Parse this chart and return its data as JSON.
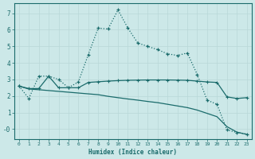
{
  "xlabel": "Humidex (Indice chaleur)",
  "bg_color": "#cce8e8",
  "grid_color": "#aacccc",
  "line_color": "#1a6b6b",
  "xlim": [
    -0.5,
    23.5
  ],
  "ylim": [
    -0.6,
    7.6
  ],
  "yticks": [
    0,
    1,
    2,
    3,
    4,
    5,
    6,
    7
  ],
  "ytick_labels": [
    "-0",
    "1",
    "2",
    "3",
    "4",
    "5",
    "6",
    "7"
  ],
  "xticks": [
    0,
    1,
    2,
    3,
    4,
    5,
    6,
    7,
    8,
    9,
    10,
    11,
    12,
    13,
    14,
    15,
    16,
    17,
    18,
    19,
    20,
    21,
    22,
    23
  ],
  "curve1_x": [
    0,
    1,
    2,
    3,
    4,
    5,
    6,
    7,
    8,
    9,
    10,
    11,
    12,
    13,
    14,
    15,
    16,
    17,
    18,
    19,
    20,
    21,
    22,
    23
  ],
  "curve1_y": [
    2.6,
    1.85,
    3.2,
    3.2,
    3.0,
    2.5,
    2.85,
    4.5,
    6.1,
    6.05,
    7.2,
    6.1,
    5.2,
    5.0,
    4.8,
    4.55,
    4.45,
    4.6,
    3.3,
    1.75,
    1.5,
    -0.05,
    -0.2,
    -0.3
  ],
  "curve2_x": [
    0,
    1,
    2,
    3,
    4,
    5,
    6,
    7,
    8,
    9,
    10,
    11,
    12,
    13,
    14,
    15,
    16,
    17,
    18,
    19,
    20,
    21,
    22,
    23
  ],
  "curve2_y": [
    2.6,
    2.45,
    2.45,
    3.2,
    2.5,
    2.5,
    2.5,
    2.82,
    2.86,
    2.9,
    2.93,
    2.95,
    2.96,
    2.97,
    2.97,
    2.97,
    2.96,
    2.95,
    2.9,
    2.85,
    2.82,
    1.95,
    1.85,
    1.9
  ],
  "curve3_x": [
    0,
    1,
    2,
    3,
    4,
    5,
    6,
    7,
    8,
    9,
    10,
    11,
    12,
    13,
    14,
    15,
    16,
    17,
    18,
    19,
    20,
    21,
    22,
    23
  ],
  "curve3_y": [
    2.6,
    2.42,
    2.38,
    2.33,
    2.28,
    2.23,
    2.18,
    2.13,
    2.08,
    1.98,
    1.9,
    1.82,
    1.75,
    1.67,
    1.6,
    1.5,
    1.4,
    1.3,
    1.15,
    0.95,
    0.75,
    0.15,
    -0.18,
    -0.32
  ]
}
